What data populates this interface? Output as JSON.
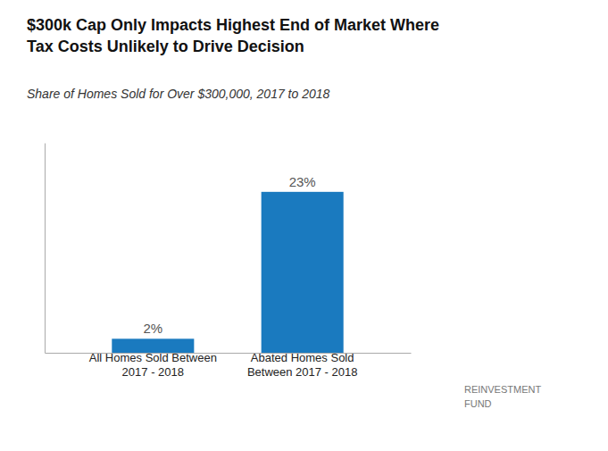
{
  "chart_data": {
    "type": "bar",
    "title": "$300k Cap Only Impacts Highest End of Market Where\nTax Costs Unlikely to Drive Decision",
    "subtitle": "Share of Homes Sold for Over $300,000, 2017 to 2018",
    "categories": [
      "All Homes Sold Between\n2017 - 2018",
      "Abated Homes Sold\nBetween 2017 - 2018"
    ],
    "values": [
      2,
      23
    ],
    "value_labels": [
      "2%",
      "23%"
    ],
    "color": "#1a7abf",
    "ylim": [
      0,
      30
    ],
    "data_labels": true,
    "tick_labels": "x",
    "grid": false,
    "annotations": [
      "REINVESTMENT\nFUND"
    ]
  }
}
